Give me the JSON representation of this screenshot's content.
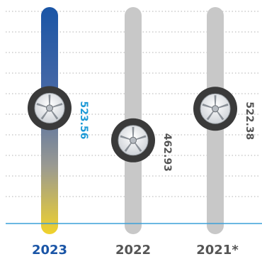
{
  "colors": {
    "highlight_bar_top": "#1a55a6",
    "highlight_bar_bottom": "#f0d22c",
    "highlight_text": "#1a55a6",
    "highlight_value_text": "#1d9ad6",
    "inactive_bar": "#c8c8c8",
    "inactive_text": "#555555",
    "baseline": "#3aa0d8",
    "gridline": "#b0b0b0",
    "tire": "#3a3a3a",
    "rim": "#e9ecef"
  },
  "chart_data": {
    "type": "bar",
    "categories": [
      "2023",
      "2022",
      "2021*"
    ],
    "values": [
      523.56,
      462.93,
      522.38
    ],
    "value_labels": [
      "523.56",
      "462.93",
      "522.38"
    ],
    "highlighted_index": 0,
    "marker": "wheel-icon",
    "grid": true,
    "ylim": [
      400,
      600
    ]
  }
}
